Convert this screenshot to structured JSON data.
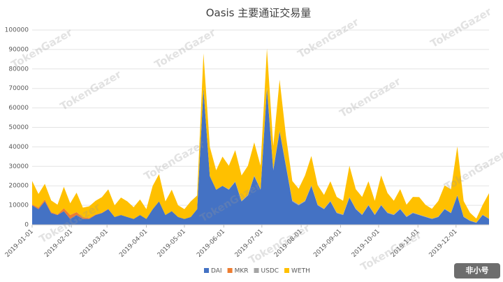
{
  "chart_data": {
    "type": "stacked_area",
    "title": "Oasis 主要通证交易量",
    "watermark": "TokenGazer",
    "logo": "非小号",
    "x": [
      "2019-01-01",
      "2019-01-06",
      "2019-01-11",
      "2019-01-16",
      "2019-01-21",
      "2019-01-26",
      "2019-01-31",
      "2019-02-05",
      "2019-02-10",
      "2019-02-15",
      "2019-02-20",
      "2019-02-25",
      "2019-03-02",
      "2019-03-07",
      "2019-03-12",
      "2019-03-17",
      "2019-03-22",
      "2019-03-27",
      "2019-04-01",
      "2019-04-06",
      "2019-04-11",
      "2019-04-16",
      "2019-04-21",
      "2019-04-26",
      "2019-05-01",
      "2019-05-06",
      "2019-05-11",
      "2019-05-16",
      "2019-05-21",
      "2019-05-26",
      "2019-05-31",
      "2019-06-05",
      "2019-06-10",
      "2019-06-15",
      "2019-06-20",
      "2019-06-25",
      "2019-06-30",
      "2019-07-05",
      "2019-07-10",
      "2019-07-15",
      "2019-07-20",
      "2019-07-25",
      "2019-07-30",
      "2019-08-04",
      "2019-08-09",
      "2019-08-14",
      "2019-08-19",
      "2019-08-24",
      "2019-08-29",
      "2019-09-03",
      "2019-09-08",
      "2019-09-13",
      "2019-09-18",
      "2019-09-23",
      "2019-09-28",
      "2019-10-03",
      "2019-10-08",
      "2019-10-13",
      "2019-10-18",
      "2019-10-23",
      "2019-10-28",
      "2019-11-02",
      "2019-11-07",
      "2019-11-12",
      "2019-11-17",
      "2019-11-22",
      "2019-11-27",
      "2019-12-02",
      "2019-12-07",
      "2019-12-12",
      "2019-12-17",
      "2019-12-22",
      "2019-12-27"
    ],
    "series": [
      {
        "name": "DAI",
        "color": "#4472c4",
        "values": [
          10000,
          8000,
          12000,
          6000,
          5000,
          7000,
          3000,
          5000,
          3000,
          3000,
          5000,
          6000,
          8000,
          4000,
          5000,
          4000,
          3000,
          5000,
          3000,
          8000,
          12000,
          5000,
          7000,
          4000,
          3000,
          4000,
          8000,
          70000,
          25000,
          18000,
          20000,
          18000,
          22000,
          12000,
          15000,
          25000,
          18000,
          70000,
          28000,
          48000,
          30000,
          12000,
          10000,
          12000,
          20000,
          10000,
          8000,
          12000,
          6000,
          5000,
          14000,
          8000,
          5000,
          10000,
          5000,
          10000,
          6000,
          5000,
          8000,
          4000,
          6000,
          5000,
          4000,
          3000,
          4000,
          8000,
          6000,
          15000,
          4000,
          2000,
          1000,
          5000,
          3000
        ]
      },
      {
        "name": "MKR",
        "color": "#ed7d31",
        "values": [
          500,
          800,
          1000,
          500,
          300,
          1500,
          2000,
          1500,
          800,
          500,
          300,
          200,
          200,
          0,
          0,
          0,
          0,
          0,
          0,
          0,
          0,
          0,
          0,
          0,
          0,
          0,
          0,
          0,
          0,
          0,
          0,
          0,
          0,
          0,
          0,
          0,
          0,
          0,
          0,
          0,
          0,
          0,
          0,
          0,
          0,
          0,
          0,
          0,
          0,
          0,
          0,
          0,
          0,
          0,
          0,
          0,
          0,
          0,
          0,
          0,
          0,
          0,
          0,
          0,
          0,
          0,
          0,
          0,
          0,
          0,
          0,
          0,
          0
        ]
      },
      {
        "name": "USDC",
        "color": "#a5a5a5",
        "values": [
          0,
          0,
          0,
          0,
          0,
          0,
          0,
          0,
          0,
          0,
          0,
          0,
          0,
          0,
          0,
          0,
          0,
          0,
          0,
          0,
          0,
          0,
          0,
          0,
          0,
          0,
          0,
          0,
          0,
          0,
          0,
          300,
          300,
          300,
          300,
          300,
          300,
          500,
          500,
          500,
          500,
          500,
          500,
          300,
          300,
          300,
          300,
          300,
          300,
          300,
          300,
          300,
          300,
          300,
          300,
          300,
          300,
          300,
          300,
          300,
          300,
          200,
          200,
          200,
          200,
          200,
          200,
          200,
          200,
          200,
          200,
          200,
          200
        ]
      },
      {
        "name": "WETH",
        "color": "#ffc000",
        "values": [
          12000,
          7000,
          8000,
          6000,
          5000,
          11000,
          6000,
          10000,
          5000,
          6000,
          7000,
          8000,
          10000,
          6000,
          9000,
          8000,
          6000,
          8000,
          5000,
          12000,
          14000,
          7000,
          11000,
          6000,
          5000,
          8000,
          7000,
          18000,
          15000,
          10000,
          15000,
          12000,
          16000,
          13000,
          15000,
          17000,
          12000,
          20000,
          12000,
          26000,
          15000,
          10000,
          8000,
          13000,
          15000,
          10000,
          7000,
          10000,
          8000,
          7000,
          16000,
          10000,
          9000,
          12000,
          7000,
          15000,
          10000,
          7000,
          10000,
          6000,
          8000,
          9000,
          6000,
          5000,
          8000,
          12000,
          12000,
          25000,
          8000,
          4000,
          2000,
          5000,
          13000
        ]
      }
    ],
    "xlim": [
      "2019-01-01",
      "2019-12-27"
    ],
    "xticks": [
      "2019-01-01",
      "2019-02-01",
      "2019-03-01",
      "2019-04-01",
      "2019-05-01",
      "2019-06-01",
      "2019-07-01",
      "2019-08-01",
      "2019-09-01",
      "2019-10-01",
      "2019-11-01",
      "2019-12-01"
    ],
    "ylim": [
      0,
      100000
    ],
    "yticks": [
      0,
      10000,
      20000,
      30000,
      40000,
      50000,
      60000,
      70000,
      80000,
      90000,
      100000
    ],
    "grid": true,
    "legend": "bottom"
  }
}
